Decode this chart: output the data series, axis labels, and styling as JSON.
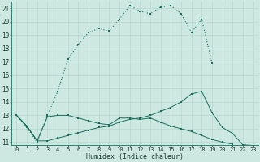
{
  "xlabel": "Humidex (Indice chaleur)",
  "bg_color": "#cce8e0",
  "grid_color_minor": "#b8d8d0",
  "grid_color_major": "#a0c8c0",
  "line_color": "#1a6e5e",
  "xlim": [
    -0.5,
    23.5
  ],
  "ylim": [
    10.8,
    21.5
  ],
  "xticks": [
    0,
    1,
    2,
    3,
    4,
    5,
    6,
    7,
    8,
    9,
    10,
    11,
    12,
    13,
    14,
    15,
    16,
    17,
    18,
    19,
    20,
    21,
    22,
    23
  ],
  "yticks": [
    11,
    12,
    13,
    14,
    15,
    16,
    17,
    18,
    19,
    20,
    21
  ],
  "curve1_x": [
    0,
    1,
    2,
    3,
    4,
    5,
    6,
    7,
    8,
    9,
    10,
    11,
    12,
    13,
    14,
    15,
    16,
    17,
    18,
    19
  ],
  "curve1_y": [
    13.0,
    12.1,
    11.0,
    13.0,
    14.8,
    17.2,
    18.3,
    19.2,
    19.5,
    19.3,
    20.2,
    21.2,
    20.8,
    20.6,
    21.1,
    21.2,
    20.6,
    19.2,
    20.2,
    16.9
  ],
  "curve2_x": [
    0,
    1,
    2,
    3,
    4,
    5,
    6,
    7,
    8,
    9,
    10,
    11,
    12,
    13,
    14,
    15,
    16,
    17,
    18,
    19,
    20,
    21
  ],
  "curve2_y": [
    13.0,
    12.2,
    11.1,
    12.9,
    13.0,
    13.0,
    12.8,
    12.6,
    12.4,
    12.3,
    12.8,
    12.8,
    12.7,
    12.8,
    12.5,
    12.2,
    12.0,
    11.8,
    11.5,
    11.2,
    11.0,
    10.85
  ],
  "curve3_x": [
    0,
    1,
    2,
    3,
    4,
    5,
    6,
    7,
    8,
    9,
    10,
    11,
    12,
    13,
    14,
    15,
    16,
    17,
    18,
    19,
    20,
    21,
    22,
    23
  ],
  "curve3_y": [
    13.0,
    12.2,
    11.1,
    11.1,
    11.3,
    11.5,
    11.7,
    11.9,
    12.1,
    12.2,
    12.5,
    12.7,
    12.8,
    13.0,
    13.3,
    13.6,
    14.0,
    14.6,
    14.8,
    13.2,
    12.1,
    11.65,
    10.8,
    10.75
  ]
}
